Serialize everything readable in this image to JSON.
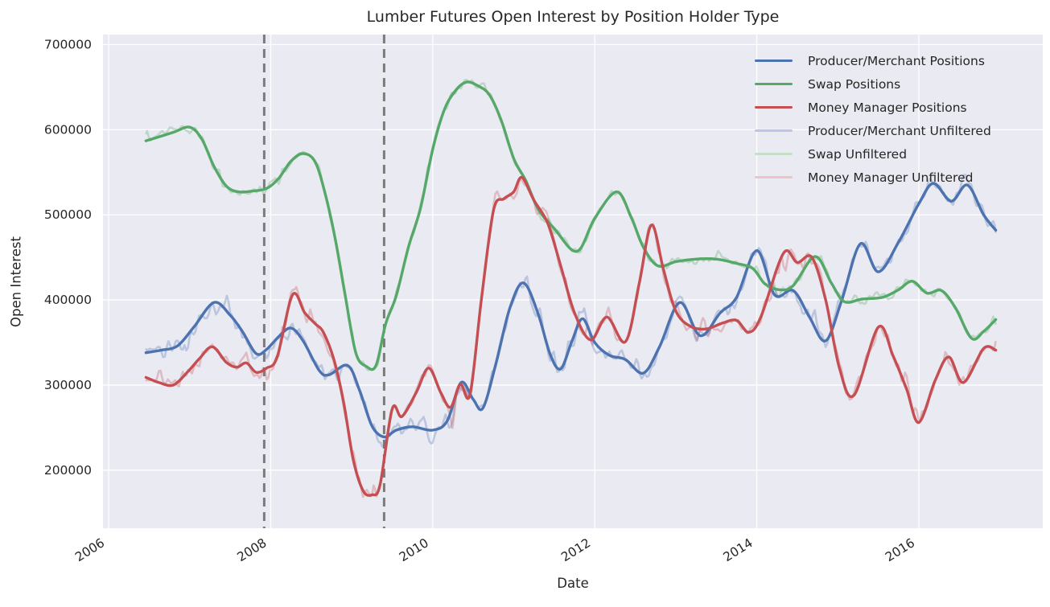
{
  "title": "Lumber Futures Open Interest by Position Holder Type",
  "axes": {
    "xlabel": "Date",
    "ylabel": "Open Interest",
    "x_ticks": [
      2006,
      2008,
      2010,
      2012,
      2014,
      2016
    ],
    "y_ticks": [
      200000,
      300000,
      400000,
      500000,
      600000,
      700000
    ],
    "x_range": [
      2005.93,
      2017.53
    ],
    "y_range": [
      131800,
      711800
    ],
    "grid_color": "#ffffff",
    "plot_bg_color": "#eaeaf2",
    "text_color": "#262626"
  },
  "legend": {
    "items": [
      {
        "label": "Producer/Merchant Positions",
        "color": "#4c72b0",
        "thickness": 3.6
      },
      {
        "label": "Swap Positions",
        "color": "#55a868",
        "thickness": 3.6
      },
      {
        "label": "Money Manager Positions",
        "color": "#c44e52",
        "thickness": 3.6
      },
      {
        "label": "Producer/Merchant Unfiltered",
        "color": "#bcc4ea",
        "thickness": 3.0
      },
      {
        "label": "Swap Unfiltered",
        "color": "#c6dec8",
        "thickness": 3.0
      },
      {
        "label": "Money Manager Unfiltered",
        "color": "#f0c3c6",
        "thickness": 3.0
      }
    ]
  },
  "chart_data": {
    "type": "line",
    "title": "Lumber Futures Open Interest by Position Holder Type",
    "xlabel": "Date",
    "ylabel": "Open Interest",
    "x_unit": "decimal_year",
    "grid": true,
    "legend_position": "upper right",
    "vlines": [
      {
        "x": 2007.92,
        "style": "dashed",
        "color": "#7b7b7b",
        "width": 3,
        "name": "recession-start"
      },
      {
        "x": 2009.4,
        "style": "dashed",
        "color": "#7b7b7b",
        "width": 3,
        "name": "recession-end"
      }
    ],
    "series": [
      {
        "name": "Producer/Merchant Positions",
        "color": "#4c72b0",
        "width": 3.4,
        "style": "smooth",
        "points": [
          [
            2006.46,
            338000
          ],
          [
            2006.65,
            341000
          ],
          [
            2006.85,
            346000
          ],
          [
            2007.05,
            368000
          ],
          [
            2007.3,
            397000
          ],
          [
            2007.5,
            382000
          ],
          [
            2007.65,
            363000
          ],
          [
            2007.82,
            337000
          ],
          [
            2007.95,
            342000
          ],
          [
            2008.1,
            357000
          ],
          [
            2008.25,
            367000
          ],
          [
            2008.4,
            352000
          ],
          [
            2008.6,
            317000
          ],
          [
            2008.72,
            312000
          ],
          [
            2008.95,
            323000
          ],
          [
            2009.1,
            293000
          ],
          [
            2009.25,
            252000
          ],
          [
            2009.4,
            239000
          ],
          [
            2009.55,
            247000
          ],
          [
            2009.75,
            251000
          ],
          [
            2010.0,
            247000
          ],
          [
            2010.18,
            258000
          ],
          [
            2010.35,
            303000
          ],
          [
            2010.5,
            283000
          ],
          [
            2010.62,
            273000
          ],
          [
            2010.78,
            325000
          ],
          [
            2010.95,
            390000
          ],
          [
            2011.12,
            420000
          ],
          [
            2011.3,
            384000
          ],
          [
            2011.45,
            336000
          ],
          [
            2011.58,
            319000
          ],
          [
            2011.72,
            352000
          ],
          [
            2011.85,
            378000
          ],
          [
            2012.0,
            350000
          ],
          [
            2012.18,
            335000
          ],
          [
            2012.38,
            330000
          ],
          [
            2012.6,
            314000
          ],
          [
            2012.8,
            345000
          ],
          [
            2013.05,
            397000
          ],
          [
            2013.3,
            358000
          ],
          [
            2013.55,
            385000
          ],
          [
            2013.75,
            403000
          ],
          [
            2014.0,
            458000
          ],
          [
            2014.22,
            406000
          ],
          [
            2014.45,
            411000
          ],
          [
            2014.65,
            380000
          ],
          [
            2014.85,
            352000
          ],
          [
            2015.05,
            400000
          ],
          [
            2015.28,
            466000
          ],
          [
            2015.5,
            433000
          ],
          [
            2015.75,
            468000
          ],
          [
            2016.0,
            513000
          ],
          [
            2016.18,
            537000
          ],
          [
            2016.4,
            516000
          ],
          [
            2016.6,
            535000
          ],
          [
            2016.8,
            500000
          ],
          [
            2016.95,
            482000
          ]
        ]
      },
      {
        "name": "Swap Positions",
        "color": "#55a868",
        "width": 3.4,
        "style": "smooth",
        "points": [
          [
            2006.46,
            587000
          ],
          [
            2006.6,
            591000
          ],
          [
            2006.8,
            597000
          ],
          [
            2007.0,
            603000
          ],
          [
            2007.15,
            589000
          ],
          [
            2007.3,
            557000
          ],
          [
            2007.45,
            534000
          ],
          [
            2007.6,
            527000
          ],
          [
            2007.78,
            528000
          ],
          [
            2007.95,
            531000
          ],
          [
            2008.1,
            543000
          ],
          [
            2008.25,
            563000
          ],
          [
            2008.4,
            572000
          ],
          [
            2008.55,
            562000
          ],
          [
            2008.68,
            522000
          ],
          [
            2008.8,
            470000
          ],
          [
            2008.92,
            405000
          ],
          [
            2009.05,
            338000
          ],
          [
            2009.18,
            322000
          ],
          [
            2009.3,
            323000
          ],
          [
            2009.42,
            372000
          ],
          [
            2009.55,
            405000
          ],
          [
            2009.7,
            462000
          ],
          [
            2009.85,
            508000
          ],
          [
            2010.0,
            577000
          ],
          [
            2010.15,
            625000
          ],
          [
            2010.3,
            648000
          ],
          [
            2010.42,
            656000
          ],
          [
            2010.55,
            652000
          ],
          [
            2010.7,
            641000
          ],
          [
            2010.85,
            610000
          ],
          [
            2011.0,
            566000
          ],
          [
            2011.15,
            540000
          ],
          [
            2011.3,
            507000
          ],
          [
            2011.5,
            484000
          ],
          [
            2011.78,
            457000
          ],
          [
            2012.0,
            496000
          ],
          [
            2012.27,
            527000
          ],
          [
            2012.45,
            497000
          ],
          [
            2012.6,
            462000
          ],
          [
            2012.78,
            440000
          ],
          [
            2013.0,
            445000
          ],
          [
            2013.25,
            448000
          ],
          [
            2013.5,
            448000
          ],
          [
            2013.75,
            443000
          ],
          [
            2013.95,
            437000
          ],
          [
            2014.1,
            419000
          ],
          [
            2014.28,
            412000
          ],
          [
            2014.45,
            417000
          ],
          [
            2014.72,
            451000
          ],
          [
            2014.92,
            420000
          ],
          [
            2015.08,
            398000
          ],
          [
            2015.3,
            401000
          ],
          [
            2015.55,
            403000
          ],
          [
            2015.75,
            412000
          ],
          [
            2015.92,
            422000
          ],
          [
            2016.1,
            408000
          ],
          [
            2016.28,
            411000
          ],
          [
            2016.45,
            391000
          ],
          [
            2016.65,
            355000
          ],
          [
            2016.8,
            363000
          ],
          [
            2016.95,
            377000
          ]
        ]
      },
      {
        "name": "Money Manager Positions",
        "color": "#c44e52",
        "width": 3.4,
        "style": "smooth",
        "points": [
          [
            2006.46,
            309000
          ],
          [
            2006.62,
            303000
          ],
          [
            2006.8,
            300000
          ],
          [
            2006.98,
            316000
          ],
          [
            2007.12,
            331000
          ],
          [
            2007.28,
            345000
          ],
          [
            2007.45,
            327000
          ],
          [
            2007.58,
            321000
          ],
          [
            2007.7,
            326000
          ],
          [
            2007.82,
            315000
          ],
          [
            2007.95,
            320000
          ],
          [
            2008.08,
            333000
          ],
          [
            2008.27,
            406000
          ],
          [
            2008.42,
            385000
          ],
          [
            2008.55,
            372000
          ],
          [
            2008.65,
            362000
          ],
          [
            2008.78,
            330000
          ],
          [
            2008.9,
            280000
          ],
          [
            2009.02,
            212000
          ],
          [
            2009.14,
            176000
          ],
          [
            2009.25,
            171000
          ],
          [
            2009.35,
            183000
          ],
          [
            2009.5,
            272000
          ],
          [
            2009.62,
            263000
          ],
          [
            2009.8,
            292000
          ],
          [
            2009.95,
            320000
          ],
          [
            2010.1,
            291000
          ],
          [
            2010.22,
            274000
          ],
          [
            2010.34,
            301000
          ],
          [
            2010.46,
            289000
          ],
          [
            2010.6,
            400000
          ],
          [
            2010.75,
            505000
          ],
          [
            2010.88,
            519000
          ],
          [
            2011.0,
            527000
          ],
          [
            2011.1,
            544000
          ],
          [
            2011.25,
            517000
          ],
          [
            2011.42,
            490000
          ],
          [
            2011.58,
            440000
          ],
          [
            2011.75,
            385000
          ],
          [
            2011.95,
            353000
          ],
          [
            2012.15,
            380000
          ],
          [
            2012.38,
            351000
          ],
          [
            2012.55,
            420000
          ],
          [
            2012.7,
            488000
          ],
          [
            2012.85,
            435000
          ],
          [
            2013.0,
            387000
          ],
          [
            2013.18,
            369000
          ],
          [
            2013.38,
            366000
          ],
          [
            2013.58,
            373000
          ],
          [
            2013.75,
            376000
          ],
          [
            2013.9,
            362000
          ],
          [
            2014.05,
            380000
          ],
          [
            2014.33,
            455000
          ],
          [
            2014.5,
            444000
          ],
          [
            2014.68,
            450000
          ],
          [
            2014.85,
            400000
          ],
          [
            2015.02,
            320000
          ],
          [
            2015.2,
            288000
          ],
          [
            2015.5,
            368000
          ],
          [
            2015.68,
            335000
          ],
          [
            2015.85,
            295000
          ],
          [
            2016.0,
            256000
          ],
          [
            2016.2,
            305000
          ],
          [
            2016.37,
            333000
          ],
          [
            2016.55,
            303000
          ],
          [
            2016.8,
            343000
          ],
          [
            2016.95,
            341000
          ]
        ]
      },
      {
        "name": "Producer/Merchant Unfiltered",
        "color": "#4c72b0",
        "opacity": 0.3,
        "width": 2.6,
        "style": "noisy",
        "derived_from": "Producer/Merchant Positions",
        "noise_amplitude": 24000,
        "seed": 7
      },
      {
        "name": "Swap Unfiltered",
        "color": "#55a868",
        "opacity": 0.3,
        "width": 2.6,
        "style": "noisy",
        "derived_from": "Swap Positions",
        "noise_amplitude": 13000,
        "seed": 13
      },
      {
        "name": "Money Manager Unfiltered",
        "color": "#c44e52",
        "opacity": 0.3,
        "width": 2.6,
        "style": "noisy",
        "derived_from": "Money Manager Positions",
        "noise_amplitude": 24000,
        "seed": 42
      }
    ]
  }
}
